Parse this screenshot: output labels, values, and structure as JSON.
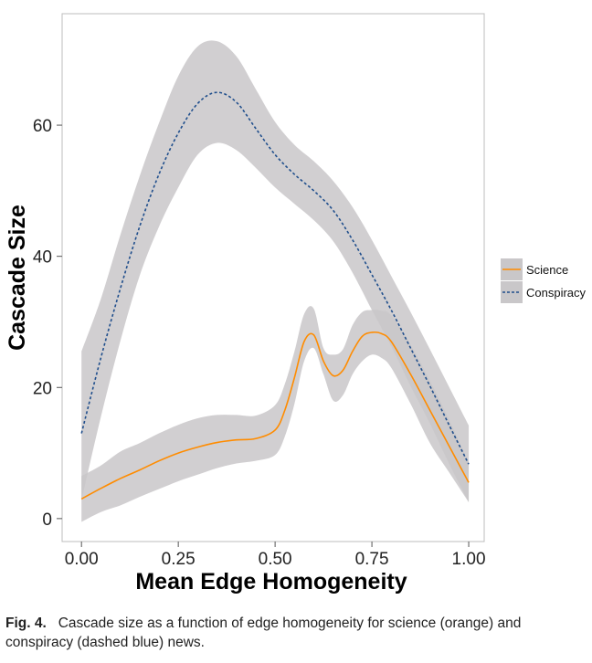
{
  "chart_data": {
    "type": "line",
    "xlabel": "Mean Edge Homogeneity",
    "ylabel": "Cascade Size",
    "xlim": [
      -0.05,
      1.04
    ],
    "ylim": [
      -3.5,
      77
    ],
    "xticks": [
      0,
      0.25,
      0.5,
      0.75,
      1
    ],
    "xtick_labels": [
      "0.00",
      "0.25",
      "0.50",
      "0.75",
      "1.00"
    ],
    "yticks": [
      0,
      20,
      40,
      60
    ],
    "ytick_labels": [
      "0",
      "20",
      "40",
      "60"
    ],
    "grid": false,
    "legend_position": "right",
    "series": [
      {
        "name": "Science",
        "style": "solid",
        "color": "#ff8c00",
        "band_color": "#c9c7c9",
        "x": [
          0,
          0.05,
          0.1,
          0.15,
          0.2,
          0.25,
          0.3,
          0.35,
          0.4,
          0.45,
          0.5,
          0.525,
          0.55,
          0.575,
          0.6,
          0.625,
          0.65,
          0.675,
          0.7,
          0.725,
          0.75,
          0.775,
          0.8,
          0.85,
          0.9,
          0.95,
          1.0
        ],
        "y": [
          3,
          4.6,
          6.1,
          7.4,
          8.8,
          10,
          10.9,
          11.6,
          12,
          12.2,
          13.5,
          16.5,
          21.5,
          27,
          28,
          24,
          21.8,
          22.6,
          25.5,
          27.8,
          28.4,
          28.2,
          27,
          22,
          16.5,
          11,
          5.5
        ],
        "y_lower": [
          -0.5,
          1,
          2,
          3.3,
          4.5,
          5.7,
          6.7,
          7.7,
          8.4,
          8.8,
          9.7,
          12.5,
          17.5,
          24,
          26,
          22,
          18,
          18.8,
          22,
          24,
          25,
          24.5,
          23,
          17.5,
          11.5,
          7,
          2.5
        ],
        "y_upper": [
          6.5,
          8.1,
          10.2,
          11.5,
          13,
          14.3,
          15.3,
          15.8,
          15.8,
          15.7,
          17.3,
          20.5,
          25.5,
          31.2,
          32,
          26,
          25,
          25.8,
          29.5,
          31.5,
          31.8,
          31.7,
          31,
          26.5,
          21,
          15,
          8.5
        ]
      },
      {
        "name": "Conspiracy",
        "style": "dashed",
        "color": "#1f4e8c",
        "band_color": "#c9c7c9",
        "x": [
          0,
          0.05,
          0.1,
          0.15,
          0.2,
          0.25,
          0.3,
          0.35,
          0.4,
          0.45,
          0.5,
          0.55,
          0.6,
          0.65,
          0.7,
          0.75,
          0.8,
          0.85,
          0.9,
          0.95,
          1.0
        ],
        "y": [
          13,
          24.5,
          35,
          44.5,
          52.5,
          58.8,
          63.3,
          65,
          63.5,
          59.5,
          55.5,
          52.5,
          50,
          47,
          42.5,
          37.2,
          31.8,
          26,
          20.2,
          14.2,
          8.3
        ],
        "y_lower": [
          2.8,
          15.5,
          27,
          37,
          44.5,
          50.5,
          55.5,
          57.3,
          56.2,
          53.5,
          50.5,
          48,
          45.5,
          42.3,
          37.5,
          31.8,
          26.3,
          20.2,
          14.5,
          8.3,
          2.5
        ],
        "y_upper": [
          25.5,
          33.5,
          43.2,
          52.2,
          60.3,
          67.5,
          72,
          72.8,
          70.5,
          65.5,
          60.5,
          57,
          54.5,
          51.5,
          47.5,
          42.5,
          37,
          31.5,
          25.8,
          20,
          14.2
        ]
      }
    ],
    "caption": {
      "label": "Fig. 4.",
      "text": "Cascade size as a function of edge homogeneity for science (orange) and conspiracy (dashed blue) news."
    }
  }
}
